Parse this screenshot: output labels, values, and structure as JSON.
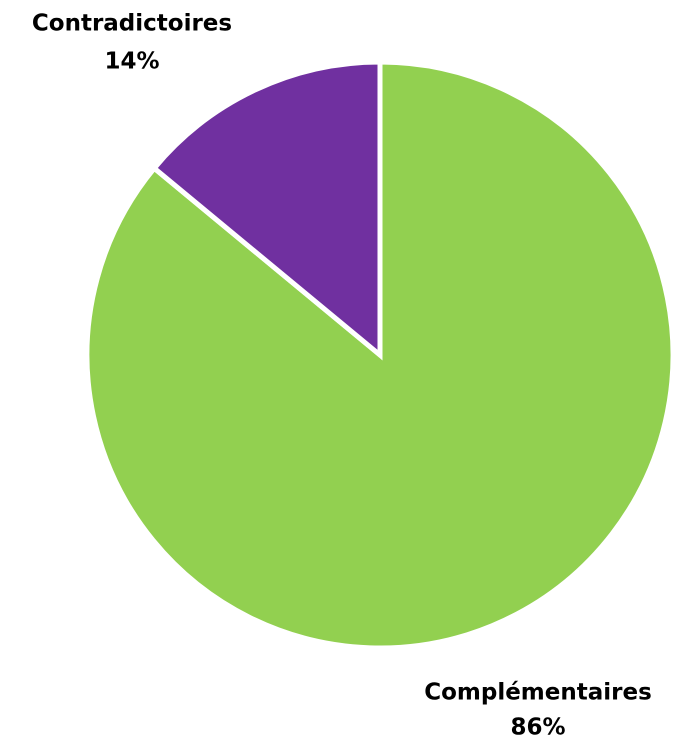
{
  "chart_data": {
    "type": "pie",
    "categories": [
      "Complémentaires",
      "Contradictoires"
    ],
    "values": [
      86,
      14
    ],
    "value_labels": [
      "86%",
      "14%"
    ],
    "colors": [
      "#92d050",
      "#7030a0"
    ]
  }
}
